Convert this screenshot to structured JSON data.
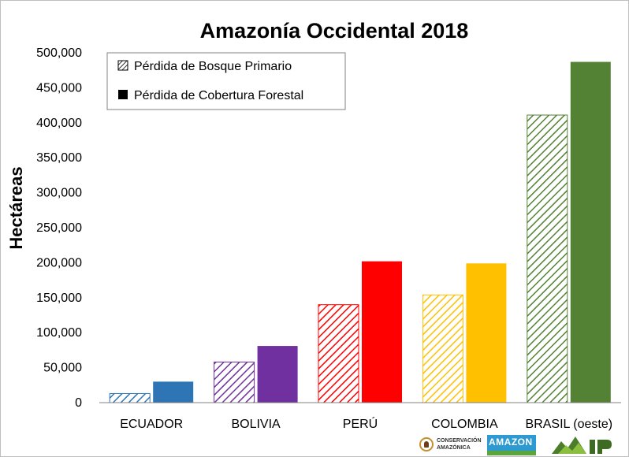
{
  "chart_data": {
    "type": "bar",
    "title": "Amazonía Occidental 2018",
    "ylabel": "Hectáreas",
    "xlabel": "",
    "ylim": [
      0,
      500000
    ],
    "yticks": [
      0,
      50000,
      100000,
      150000,
      200000,
      250000,
      300000,
      350000,
      400000,
      450000,
      500000
    ],
    "ytick_labels": [
      "0",
      "50,000",
      "100,000",
      "150,000",
      "200,000",
      "250,000",
      "300,000",
      "350,000",
      "400,000",
      "450,000",
      "500,000"
    ],
    "categories": [
      "ECUADOR",
      "BOLIVIA",
      "PERÚ",
      "COLOMBIA",
      "BRASIL (oeste)"
    ],
    "colors": [
      "#2e75b6",
      "#7030a0",
      "#ff0000",
      "#ffc000",
      "#548235"
    ],
    "series": [
      {
        "name": "Pérdida de Bosque Primario",
        "style": "hatched",
        "values": [
          13000,
          58000,
          140000,
          154000,
          411000
        ]
      },
      {
        "name": "Pérdida de Cobertura Forestal",
        "style": "solid",
        "values": [
          30000,
          81000,
          202000,
          199000,
          487000
        ]
      }
    ],
    "legend_position": "top-left",
    "grid": false
  },
  "logos": {
    "conservacion": "CONSERVACIÓN AMAZÓNICA",
    "amazon": "AMAZON",
    "amazon_icon": "amazon-conservation-logo",
    "maap_icon": "maap-logo"
  }
}
